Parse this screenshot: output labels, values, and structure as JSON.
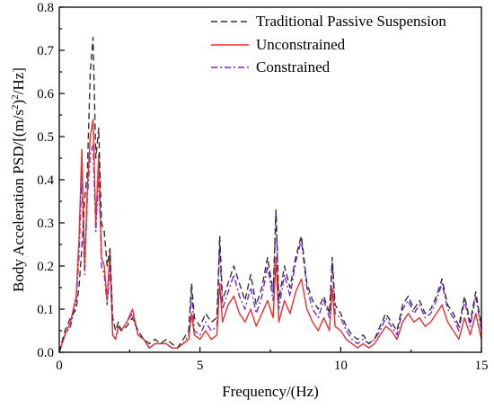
{
  "chart_data": {
    "type": "line",
    "title": "",
    "xlabel": "Frequency/(Hz)",
    "ylabel": "Body Acceleration PSD/[(m/s²)²/Hz]",
    "ylabel_parts": [
      "Body Acceleration PSD/[(m/s",
      "2",
      ")",
      "2",
      "/Hz]"
    ],
    "xlim": [
      0,
      15
    ],
    "ylim": [
      0,
      0.8
    ],
    "xticks": [
      0,
      5,
      10,
      15
    ],
    "yticks": [
      0.0,
      0.1,
      0.2,
      0.3,
      0.4,
      0.5,
      0.6,
      0.7,
      0.8
    ],
    "ytick_labels": [
      "0.0",
      "0.1",
      "0.2",
      "0.3",
      "0.4",
      "0.5",
      "0.6",
      "0.7",
      "0.8"
    ],
    "grid": false,
    "legend_position": "top-right",
    "series": [
      {
        "name": "Traditional Passive Suspension",
        "color": "#333333",
        "dash": "dashed",
        "x": [
          0,
          0.2,
          0.4,
          0.6,
          0.7,
          0.8,
          0.9,
          1.0,
          1.1,
          1.2,
          1.3,
          1.4,
          1.5,
          1.6,
          1.7,
          1.8,
          1.9,
          2.0,
          2.1,
          2.2,
          2.4,
          2.6,
          2.8,
          3.0,
          3.2,
          3.4,
          3.6,
          3.8,
          4.0,
          4.2,
          4.4,
          4.6,
          4.7,
          4.8,
          5.0,
          5.2,
          5.4,
          5.6,
          5.7,
          5.8,
          6.0,
          6.2,
          6.4,
          6.6,
          6.8,
          7.0,
          7.2,
          7.4,
          7.6,
          7.7,
          7.8,
          8.0,
          8.2,
          8.4,
          8.6,
          8.8,
          9.0,
          9.2,
          9.4,
          9.6,
          9.7,
          9.8,
          10.0,
          10.2,
          10.4,
          10.6,
          10.8,
          11.0,
          11.2,
          11.4,
          11.6,
          11.8,
          12.0,
          12.2,
          12.4,
          12.6,
          12.8,
          13.0,
          13.2,
          13.4,
          13.6,
          13.8,
          14.0,
          14.2,
          14.4,
          14.6,
          14.8,
          15.0
        ],
        "y": [
          0.0,
          0.05,
          0.08,
          0.1,
          0.15,
          0.24,
          0.35,
          0.42,
          0.65,
          0.73,
          0.45,
          0.52,
          0.3,
          0.28,
          0.2,
          0.24,
          0.08,
          0.05,
          0.07,
          0.05,
          0.06,
          0.08,
          0.05,
          0.03,
          0.02,
          0.03,
          0.02,
          0.03,
          0.02,
          0.01,
          0.03,
          0.05,
          0.16,
          0.08,
          0.06,
          0.09,
          0.07,
          0.08,
          0.27,
          0.12,
          0.16,
          0.2,
          0.16,
          0.12,
          0.18,
          0.11,
          0.15,
          0.22,
          0.14,
          0.33,
          0.12,
          0.2,
          0.15,
          0.22,
          0.27,
          0.16,
          0.12,
          0.1,
          0.13,
          0.09,
          0.22,
          0.11,
          0.09,
          0.06,
          0.04,
          0.03,
          0.04,
          0.02,
          0.03,
          0.06,
          0.09,
          0.07,
          0.05,
          0.11,
          0.13,
          0.1,
          0.12,
          0.09,
          0.1,
          0.13,
          0.17,
          0.11,
          0.09,
          0.06,
          0.13,
          0.07,
          0.14,
          0.06
        ]
      },
      {
        "name": "Unconstrained",
        "color": "#e8302e",
        "dash": "solid",
        "x": [
          0,
          0.2,
          0.4,
          0.6,
          0.7,
          0.8,
          0.9,
          1.0,
          1.1,
          1.2,
          1.3,
          1.4,
          1.5,
          1.6,
          1.7,
          1.8,
          1.9,
          2.0,
          2.1,
          2.2,
          2.4,
          2.6,
          2.8,
          3.0,
          3.2,
          3.4,
          3.6,
          3.8,
          4.0,
          4.2,
          4.4,
          4.6,
          4.7,
          4.8,
          5.0,
          5.2,
          5.4,
          5.6,
          5.7,
          5.8,
          6.0,
          6.2,
          6.4,
          6.6,
          6.8,
          7.0,
          7.2,
          7.4,
          7.6,
          7.7,
          7.8,
          8.0,
          8.2,
          8.4,
          8.6,
          8.8,
          9.0,
          9.2,
          9.4,
          9.6,
          9.7,
          9.8,
          10.0,
          10.2,
          10.4,
          10.6,
          10.8,
          11.0,
          11.2,
          11.4,
          11.6,
          11.8,
          12.0,
          12.2,
          12.4,
          12.6,
          12.8,
          13.0,
          13.2,
          13.4,
          13.6,
          13.8,
          14.0,
          14.2,
          14.4,
          14.6,
          14.8,
          15.0
        ],
        "y": [
          0.0,
          0.04,
          0.07,
          0.13,
          0.26,
          0.47,
          0.2,
          0.38,
          0.5,
          0.54,
          0.3,
          0.46,
          0.22,
          0.2,
          0.12,
          0.24,
          0.04,
          0.03,
          0.06,
          0.05,
          0.07,
          0.1,
          0.04,
          0.03,
          0.01,
          0.02,
          0.02,
          0.02,
          0.01,
          0.01,
          0.02,
          0.03,
          0.09,
          0.04,
          0.03,
          0.05,
          0.03,
          0.04,
          0.16,
          0.07,
          0.11,
          0.13,
          0.09,
          0.07,
          0.1,
          0.06,
          0.09,
          0.12,
          0.08,
          0.22,
          0.07,
          0.12,
          0.09,
          0.14,
          0.17,
          0.1,
          0.07,
          0.05,
          0.08,
          0.05,
          0.15,
          0.06,
          0.05,
          0.03,
          0.02,
          0.01,
          0.02,
          0.01,
          0.02,
          0.04,
          0.06,
          0.05,
          0.03,
          0.07,
          0.09,
          0.07,
          0.08,
          0.06,
          0.07,
          0.09,
          0.11,
          0.07,
          0.05,
          0.03,
          0.08,
          0.04,
          0.09,
          0.03
        ]
      },
      {
        "name": "Constrained",
        "color": "#7b22e0",
        "dash": "dashdot",
        "x": [
          0,
          0.2,
          0.4,
          0.6,
          0.7,
          0.8,
          0.9,
          1.0,
          1.1,
          1.2,
          1.3,
          1.4,
          1.5,
          1.6,
          1.7,
          1.8,
          1.9,
          2.0,
          2.1,
          2.2,
          2.4,
          2.6,
          2.8,
          3.0,
          3.2,
          3.4,
          3.6,
          3.8,
          4.0,
          4.2,
          4.4,
          4.6,
          4.7,
          4.8,
          5.0,
          5.2,
          5.4,
          5.6,
          5.7,
          5.8,
          6.0,
          6.2,
          6.4,
          6.6,
          6.8,
          7.0,
          7.2,
          7.4,
          7.6,
          7.7,
          7.8,
          8.0,
          8.2,
          8.4,
          8.6,
          8.8,
          9.0,
          9.2,
          9.4,
          9.6,
          9.7,
          9.8,
          10.0,
          10.2,
          10.4,
          10.6,
          10.8,
          11.0,
          11.2,
          11.4,
          11.6,
          11.8,
          12.0,
          12.2,
          12.4,
          12.6,
          12.8,
          13.0,
          13.2,
          13.4,
          13.6,
          13.8,
          14.0,
          14.2,
          14.4,
          14.6,
          14.8,
          15.0
        ],
        "y": [
          0.0,
          0.04,
          0.06,
          0.12,
          0.22,
          0.41,
          0.18,
          0.36,
          0.46,
          0.48,
          0.28,
          0.42,
          0.2,
          0.18,
          0.11,
          0.2,
          0.04,
          0.03,
          0.06,
          0.05,
          0.07,
          0.09,
          0.04,
          0.03,
          0.01,
          0.02,
          0.02,
          0.02,
          0.01,
          0.01,
          0.02,
          0.04,
          0.14,
          0.05,
          0.04,
          0.07,
          0.05,
          0.06,
          0.25,
          0.1,
          0.14,
          0.18,
          0.13,
          0.1,
          0.15,
          0.09,
          0.13,
          0.2,
          0.12,
          0.33,
          0.1,
          0.18,
          0.13,
          0.21,
          0.26,
          0.15,
          0.1,
          0.08,
          0.12,
          0.08,
          0.21,
          0.09,
          0.08,
          0.05,
          0.03,
          0.02,
          0.03,
          0.02,
          0.03,
          0.05,
          0.08,
          0.06,
          0.04,
          0.1,
          0.12,
          0.09,
          0.11,
          0.08,
          0.09,
          0.12,
          0.16,
          0.1,
          0.08,
          0.05,
          0.12,
          0.06,
          0.13,
          0.05
        ]
      }
    ]
  }
}
